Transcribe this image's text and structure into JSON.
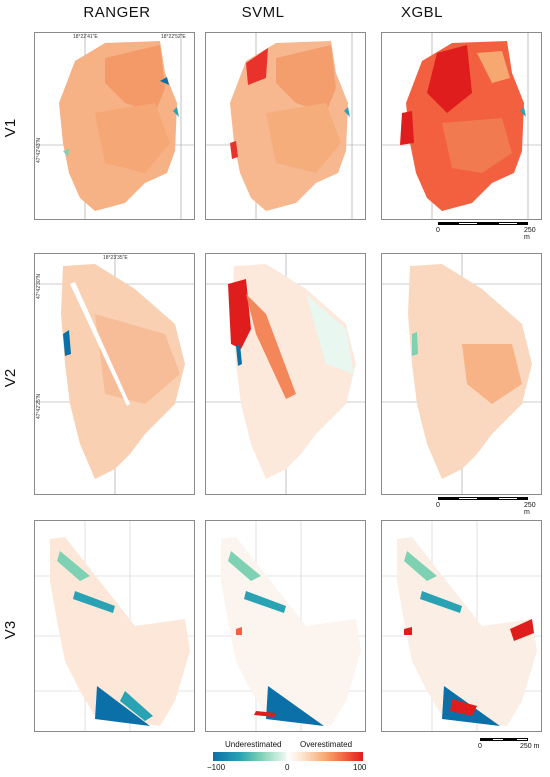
{
  "columns": [
    "RANGER",
    "SVML",
    "XGBL"
  ],
  "rows": [
    "V1",
    "V2",
    "V3"
  ],
  "coords": {
    "v1_top_left": "18°22'41\"E",
    "v1_top_right": "18°22'52\"E",
    "v1_side": "47°42'43\"N",
    "v2_top": "18°23'35\"E",
    "v2_side_top": "47°42'30\"N",
    "v2_side_bottom": "47°42'25\"N"
  },
  "scalebar": {
    "start": "0",
    "end": "250 m"
  },
  "legend": {
    "underestimated": "Underestimated",
    "overestimated": "Overestimated",
    "min": "−100",
    "mid": "0",
    "max": "100"
  },
  "colors": {
    "strong_under": "#0b6fa8",
    "under": "#7fd1b4",
    "neutral": "#ffffff",
    "over": "#f7a870",
    "strong_over": "#e01d1d",
    "panel_border": "#8a8a8a"
  }
}
